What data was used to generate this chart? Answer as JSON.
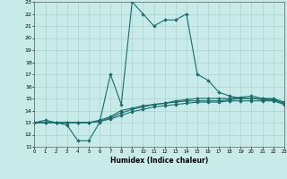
{
  "xlabel": "Humidex (Indice chaleur)",
  "bg_color": "#c8ebe9",
  "line_color": "#1a6b6b",
  "grid_color": "#a8d4d2",
  "xmin": 0,
  "xmax": 23,
  "ymin": 11,
  "ymax": 23,
  "line1_x": [
    0,
    1,
    2,
    3,
    4,
    5,
    6,
    7,
    8,
    9,
    10,
    11,
    12,
    13,
    14,
    15,
    16,
    17,
    18,
    19,
    20,
    21,
    22,
    23
  ],
  "line1_y": [
    13,
    13,
    13,
    12.8,
    11.5,
    11.5,
    13,
    17,
    14.5,
    23,
    22,
    21,
    21.5,
    21.5,
    22,
    17,
    16.5,
    15.5,
    15.2,
    15,
    15,
    15,
    15,
    14.7
  ],
  "line2_x": [
    0,
    1,
    2,
    3,
    4,
    5,
    6,
    7,
    8,
    9,
    10,
    11,
    12,
    13,
    14,
    15,
    16,
    17,
    18,
    19,
    20,
    21,
    22,
    23
  ],
  "line2_y": [
    13,
    13.2,
    13,
    13,
    13,
    13,
    13.1,
    13.3,
    13.6,
    13.9,
    14.1,
    14.3,
    14.4,
    14.5,
    14.6,
    14.7,
    14.7,
    14.7,
    14.8,
    14.8,
    14.8,
    14.8,
    14.8,
    14.5
  ],
  "line3_x": [
    0,
    1,
    2,
    3,
    4,
    5,
    6,
    7,
    8,
    9,
    10,
    11,
    12,
    13,
    14,
    15,
    16,
    17,
    18,
    19,
    20,
    21,
    22,
    23
  ],
  "line3_y": [
    13,
    13,
    13,
    13,
    13,
    13,
    13.1,
    13.4,
    13.8,
    14.1,
    14.3,
    14.5,
    14.6,
    14.7,
    14.8,
    14.8,
    14.8,
    14.8,
    14.9,
    15.0,
    15.0,
    14.9,
    14.9,
    14.6
  ],
  "line4_x": [
    0,
    1,
    2,
    3,
    4,
    5,
    6,
    7,
    8,
    9,
    10,
    11,
    12,
    13,
    14,
    15,
    16,
    17,
    18,
    19,
    20,
    21,
    22,
    23
  ],
  "line4_y": [
    13,
    13,
    13,
    13,
    13,
    13,
    13.2,
    13.5,
    14.0,
    14.2,
    14.4,
    14.5,
    14.6,
    14.8,
    14.9,
    15.0,
    15.0,
    15.0,
    15.0,
    15.1,
    15.2,
    15.0,
    14.9,
    14.6
  ]
}
